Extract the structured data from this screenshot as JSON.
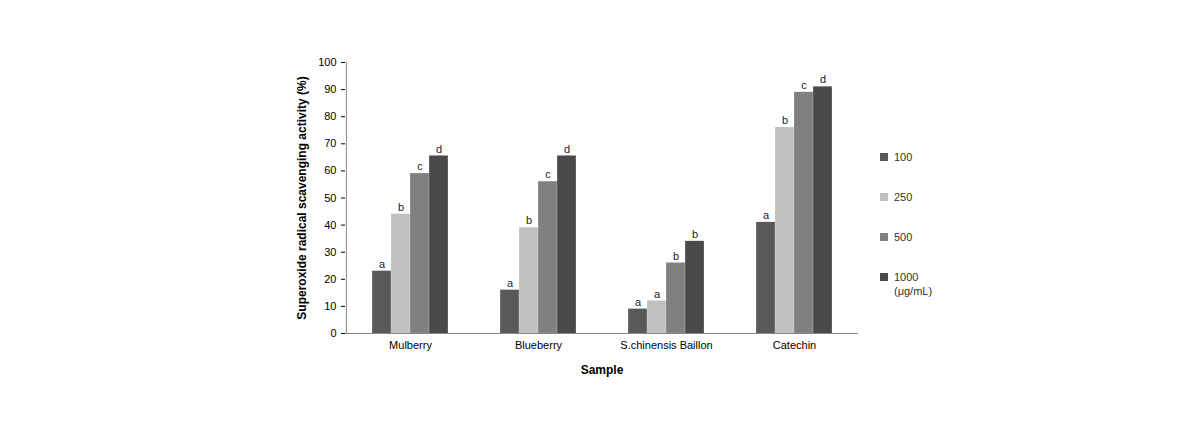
{
  "chart_data": {
    "type": "bar",
    "categories": [
      "Mulberry",
      "Blueberry",
      "S.chinensis Baillon",
      "Catechin"
    ],
    "x_label": "Sample",
    "y_label": "Superoxide radical scavenging activity (%)",
    "series": [
      {
        "name": "100",
        "color": "#595959",
        "values": [
          23,
          16,
          9,
          41
        ],
        "annotations": [
          "a",
          "a",
          "a",
          "a"
        ]
      },
      {
        "name": "250",
        "color": "#c0c0c0",
        "values": [
          44,
          39,
          12,
          76
        ],
        "annotations": [
          "b",
          "b",
          "a",
          "b"
        ]
      },
      {
        "name": "500",
        "color": "#808080",
        "values": [
          59,
          56,
          26,
          89
        ],
        "annotations": [
          "c",
          "c",
          "b",
          "c"
        ]
      },
      {
        "name": "1000 (μg/mL)",
        "color": "#4a4a4a",
        "values": [
          65.5,
          65.5,
          34,
          91
        ],
        "annotations": [
          "d",
          "d",
          "b",
          "d"
        ]
      }
    ],
    "ylim": [
      0,
      100
    ],
    "yticks": [
      0,
      10,
      20,
      30,
      40,
      50,
      60,
      70,
      80,
      90,
      100
    ],
    "grid": false,
    "legend": "right"
  }
}
